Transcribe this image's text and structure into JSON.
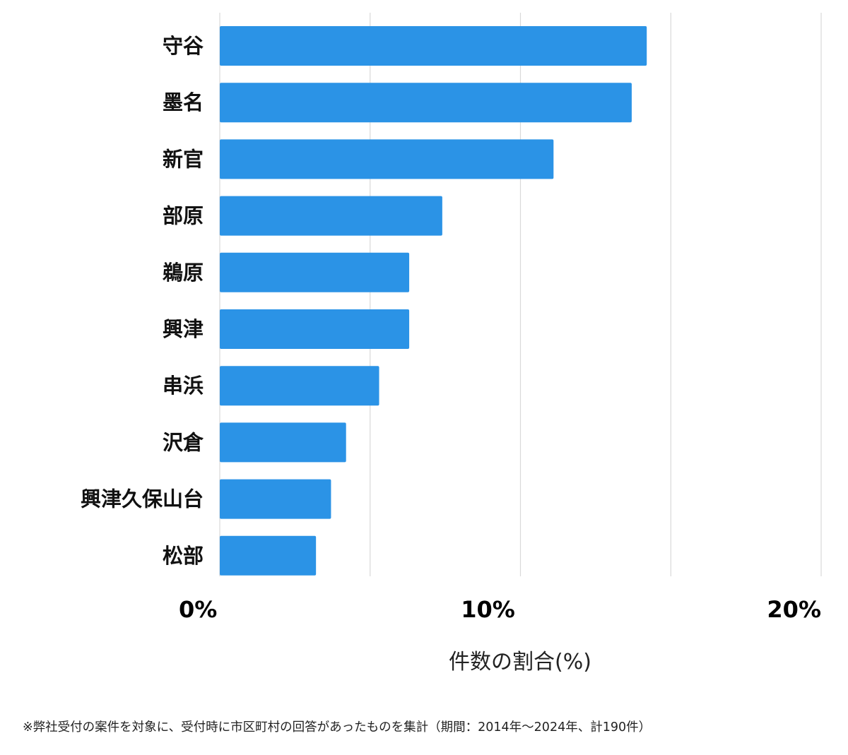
{
  "chart_data": {
    "type": "bar",
    "orientation": "horizontal",
    "categories": [
      "守谷",
      "墨名",
      "新官",
      "部原",
      "鵜原",
      "興津",
      "串浜",
      "沢倉",
      "興津久保山台",
      "松部"
    ],
    "values": [
      14.2,
      13.7,
      11.1,
      7.4,
      6.3,
      6.3,
      5.3,
      4.2,
      3.7,
      3.2
    ],
    "xlabel": "件数の割合(%)",
    "xlim": [
      0,
      20
    ],
    "xticks": [
      {
        "value": 0,
        "label": "0%"
      },
      {
        "value": 10,
        "label": "10%"
      },
      {
        "value": 20,
        "label": "20%"
      }
    ],
    "gridlines": [
      0,
      5,
      10,
      15,
      20
    ],
    "grid": true,
    "bar_color": "#2b93e6"
  },
  "footnote": "※弊社受付の案件を対象に、受付時に市区町村の回答があったものを集計（期間：2014年～2024年、計190件）"
}
